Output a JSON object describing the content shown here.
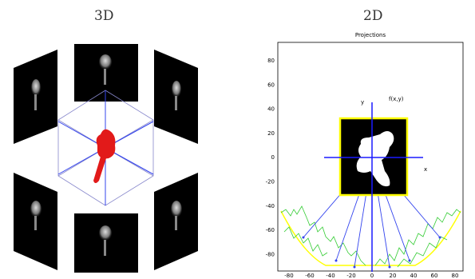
{
  "left_panel": {
    "heading": "3D"
  },
  "right_panel": {
    "heading": "2D",
    "plot_title": "Projections",
    "function_label": "f(x,y)",
    "x_axis_label": "x",
    "y_axis_label": "y",
    "x_ticks": [
      "-80",
      "-60",
      "-40",
      "-20",
      "0",
      "20",
      "40",
      "60",
      "80"
    ],
    "y_ticks": [
      "80",
      "60",
      "40",
      "20",
      "0",
      "-20",
      "-40",
      "-60",
      "-80"
    ]
  },
  "colors": {
    "object_red": "#e21a1a",
    "axis_blue": "#1a1aff",
    "frame_yellow": "#ffff00",
    "projection_green": "#33cc33"
  }
}
